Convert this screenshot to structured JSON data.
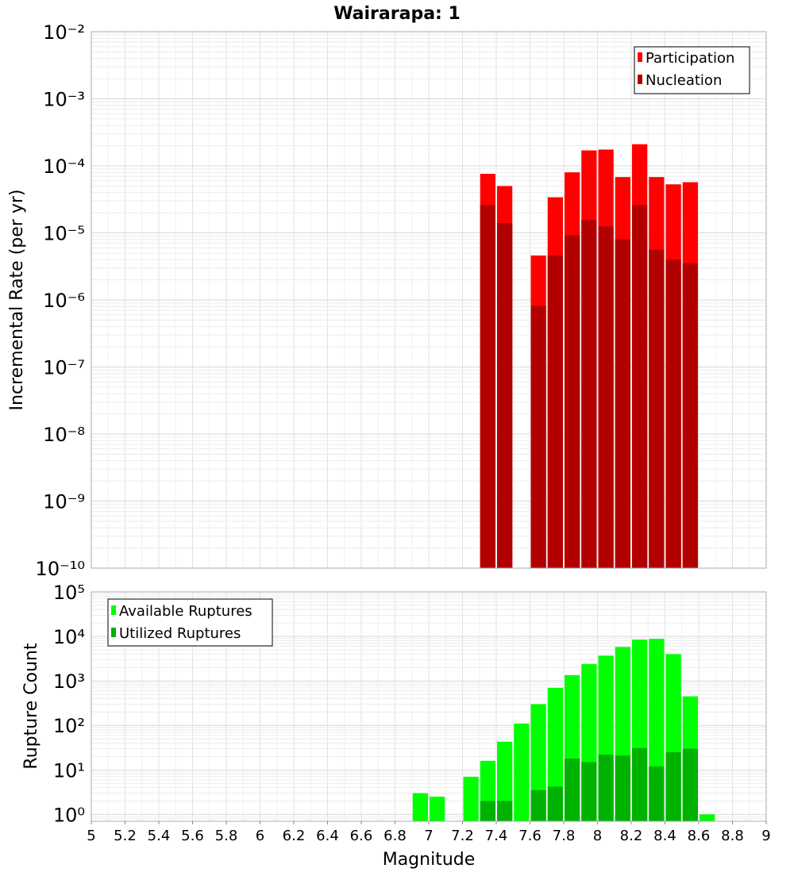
{
  "chart_data": [
    {
      "type": "bar",
      "title": "Wairarapa: 1",
      "xlabel": "",
      "ylabel": "Incremental Rate (per yr)",
      "yscale": "log",
      "ylim": [
        1e-10,
        0.01
      ],
      "xlim": [
        5,
        9
      ],
      "y_tick_exponents": [
        -10,
        -9,
        -8,
        -7,
        -6,
        -5,
        -4,
        -3,
        -2
      ],
      "legend_position": "top-right",
      "series": [
        {
          "name": "Participation",
          "color": "#ff0000",
          "x": [
            7.35,
            7.45,
            7.65,
            7.75,
            7.85,
            7.95,
            8.05,
            8.15,
            8.25,
            8.35,
            8.45,
            8.55
          ],
          "values": [
            7.6e-05,
            5e-05,
            4.6e-06,
            3.4e-05,
            8e-05,
            0.00017,
            0.000175,
            6.8e-05,
            0.00021,
            6.8e-05,
            5.3e-05,
            5.7e-05
          ]
        },
        {
          "name": "Nucleation",
          "color": "#b20000",
          "x": [
            7.35,
            7.45,
            7.65,
            7.75,
            7.85,
            7.95,
            8.05,
            8.15,
            8.25,
            8.35,
            8.45,
            8.55
          ],
          "values": [
            2.6e-05,
            1.4e-05,
            8.2e-07,
            4.6e-06,
            9.2e-06,
            1.55e-05,
            1.25e-05,
            8e-06,
            2.6e-05,
            5.6e-06,
            4e-06,
            3.5e-06
          ]
        }
      ]
    },
    {
      "type": "bar",
      "title": "",
      "xlabel": "Magnitude",
      "ylabel": "Rupture Count",
      "yscale": "log",
      "ylim": [
        0.7,
        100000
      ],
      "xlim": [
        5,
        9
      ],
      "y_tick_exponents": [
        0,
        1,
        2,
        3,
        4,
        5
      ],
      "x_ticks": [
        "5",
        "5.2",
        "5.4",
        "5.6",
        "5.8",
        "6",
        "6.2",
        "6.4",
        "6.6",
        "6.8",
        "7",
        "7.2",
        "7.4",
        "7.6",
        "7.8",
        "8",
        "8.2",
        "8.4",
        "8.6",
        "8.8",
        "9"
      ],
      "legend_position": "top-left",
      "series": [
        {
          "name": "Available Ruptures",
          "color": "#00ff00",
          "x": [
            6.95,
            7.05,
            7.25,
            7.35,
            7.45,
            7.55,
            7.65,
            7.75,
            7.85,
            7.95,
            8.05,
            8.15,
            8.25,
            8.35,
            8.45,
            8.55,
            8.65
          ],
          "values": [
            3,
            2.5,
            7,
            16,
            43,
            110,
            300,
            700,
            1350,
            2400,
            3700,
            5800,
            8500,
            8800,
            4000,
            450,
            1
          ]
        },
        {
          "name": "Utilized Ruptures",
          "color": "#00b200",
          "x": [
            7.35,
            7.45,
            7.65,
            7.75,
            7.85,
            7.95,
            8.05,
            8.15,
            8.25,
            8.35,
            8.45,
            8.55
          ],
          "values": [
            2,
            2,
            3.5,
            4.2,
            18,
            15,
            22,
            21,
            31,
            12,
            25,
            30
          ]
        }
      ]
    }
  ]
}
